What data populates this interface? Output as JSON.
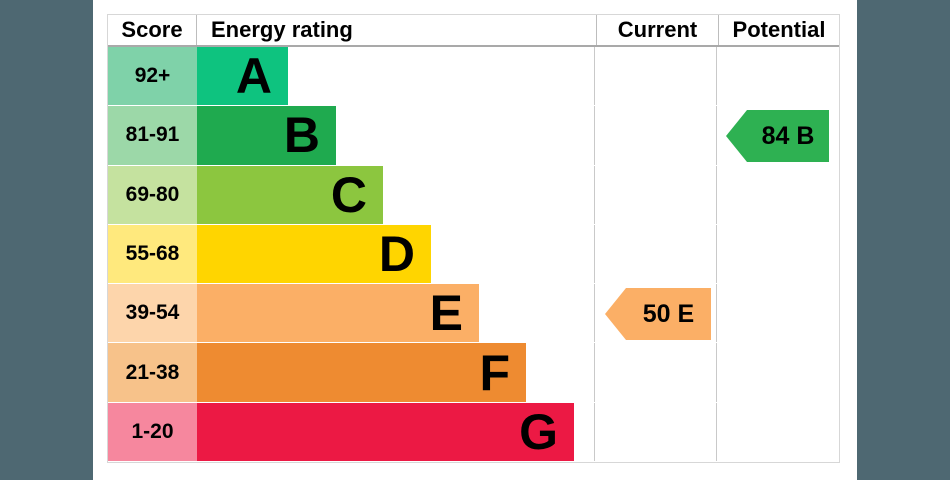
{
  "page": {
    "outer_background": "#4e6872",
    "panel_background": "#ffffff"
  },
  "chart_data": {
    "type": "epc_energy_rating_chart",
    "columns": [
      "Score",
      "Energy rating",
      "Current",
      "Potential"
    ],
    "bands": [
      {
        "grade": "A",
        "score_range": "92+",
        "bar_color": "#0ec37f",
        "score_cell_color": "#7fd2a9"
      },
      {
        "grade": "B",
        "score_range": "81-91",
        "bar_color": "#1faa4f",
        "score_cell_color": "#9cd8a8"
      },
      {
        "grade": "C",
        "score_range": "69-80",
        "bar_color": "#8cc63f",
        "score_cell_color": "#c5e29f"
      },
      {
        "grade": "D",
        "score_range": "55-68",
        "bar_color": "#ffd500",
        "score_cell_color": "#ffe97d"
      },
      {
        "grade": "E",
        "score_range": "39-54",
        "bar_color": "#fbaf66",
        "score_cell_color": "#fdd5ab"
      },
      {
        "grade": "F",
        "score_range": "21-38",
        "bar_color": "#ee8b31",
        "score_cell_color": "#f7c28a"
      },
      {
        "grade": "G",
        "score_range": "1-20",
        "bar_color": "#ec1944",
        "score_cell_color": "#f6879e"
      }
    ],
    "current": {
      "label": "50 E",
      "value": 50,
      "grade": "E",
      "band_index": 4,
      "arrow_color": "#fbaf66"
    },
    "potential": {
      "label": "84 B",
      "value": 84,
      "grade": "B",
      "band_index": 1,
      "arrow_color": "#2eb152"
    }
  }
}
